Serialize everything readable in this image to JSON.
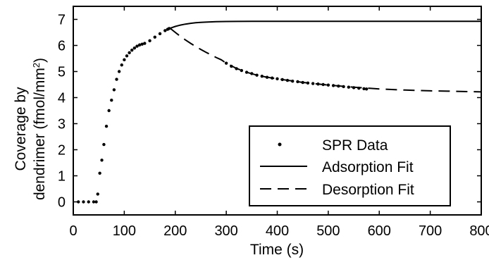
{
  "chart_data": {
    "type": "line",
    "xlabel": "Time (s)",
    "ylabel_line1": "Coverage by",
    "ylabel_line2": "dendrimer (fmol/mm",
    "ylabel_superscript": "2",
    "ylabel_close": ")",
    "xlim": [
      0,
      800
    ],
    "ylim": [
      -0.5,
      7.5
    ],
    "xticks": [
      0,
      100,
      200,
      300,
      400,
      500,
      600,
      700,
      800
    ],
    "yticks": [
      0,
      1,
      2,
      3,
      4,
      5,
      6,
      7
    ],
    "grid": false,
    "legend_position": "bottom-right",
    "series": [
      {
        "name": "SPR Data",
        "style": "dots",
        "x": [
          10,
          20,
          30,
          40,
          45,
          48,
          52,
          56,
          60,
          65,
          70,
          75,
          80,
          85,
          90,
          95,
          100,
          105,
          110,
          115,
          120,
          125,
          130,
          135,
          140,
          150,
          160,
          170,
          180,
          185,
          188,
          300,
          310,
          320,
          330,
          340,
          350,
          360,
          370,
          380,
          390,
          400,
          410,
          420,
          430,
          440,
          450,
          460,
          470,
          480,
          490,
          500,
          510,
          520,
          530,
          540,
          550,
          560,
          570,
          575
        ],
        "y": [
          0.0,
          0.0,
          0.0,
          0.0,
          0.0,
          0.3,
          1.1,
          1.6,
          2.2,
          2.9,
          3.5,
          3.9,
          4.3,
          4.7,
          5.0,
          5.25,
          5.45,
          5.6,
          5.72,
          5.82,
          5.9,
          5.97,
          6.02,
          6.05,
          6.08,
          6.18,
          6.32,
          6.45,
          6.57,
          6.62,
          6.65,
          5.32,
          5.2,
          5.11,
          5.04,
          4.97,
          4.92,
          4.86,
          4.82,
          4.78,
          4.75,
          4.72,
          4.69,
          4.66,
          4.63,
          4.61,
          4.58,
          4.56,
          4.54,
          4.52,
          4.5,
          4.48,
          4.46,
          4.44,
          4.42,
          4.4,
          4.38,
          4.36,
          4.34,
          4.33
        ]
      },
      {
        "name": "Adsorption Fit",
        "style": "solid",
        "x": [
          190,
          200,
          210,
          220,
          230,
          240,
          250,
          260,
          280,
          300,
          320,
          350,
          400,
          450,
          500,
          600,
          700,
          800
        ],
        "y": [
          6.66,
          6.73,
          6.78,
          6.82,
          6.85,
          6.87,
          6.885,
          6.895,
          6.91,
          6.918,
          6.922,
          6.925,
          6.927,
          6.928,
          6.928,
          6.928,
          6.928,
          6.928
        ]
      },
      {
        "name": "Desorption Fit",
        "style": "dashed",
        "x": [
          190,
          200,
          210,
          220,
          230,
          240,
          250,
          260,
          270,
          280,
          290,
          300,
          320,
          340,
          360,
          380,
          400,
          450,
          500,
          550,
          600,
          650,
          700,
          750,
          800
        ],
        "y": [
          6.66,
          6.5,
          6.35,
          6.21,
          6.08,
          5.96,
          5.85,
          5.74,
          5.64,
          5.54,
          5.45,
          5.32,
          5.12,
          4.97,
          4.86,
          4.78,
          4.72,
          4.58,
          4.48,
          4.4,
          4.33,
          4.29,
          4.26,
          4.24,
          4.22
        ]
      }
    ]
  }
}
